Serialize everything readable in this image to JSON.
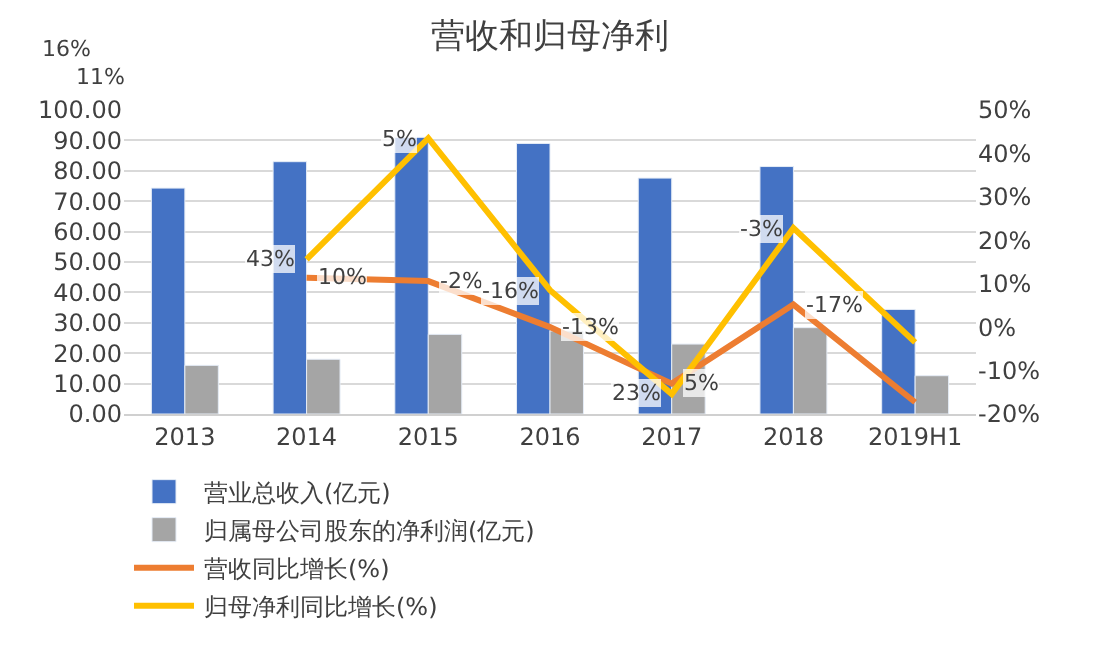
{
  "chart_data": {
    "type": "bar",
    "title": "营收和归母净利",
    "categories": [
      "2013",
      "2014",
      "2015",
      "2016",
      "2017",
      "2018",
      "2019H1"
    ],
    "series": [
      {
        "name": "营业总收入(亿元)",
        "color": "#4472c4",
        "values": [
          74.3,
          83.0,
          91.0,
          89.0,
          77.6,
          81.4,
          34.4
        ]
      },
      {
        "name": "归属母公司股东的净利润(亿元)",
        "color": "#a5a5a5",
        "values": [
          16.0,
          18.0,
          26.2,
          27.3,
          23.0,
          28.4,
          12.6
        ]
      },
      {
        "name": "营收同比增长(%)",
        "type": "line",
        "axis": "y2",
        "color": "#ed7d31",
        "values": [
          null,
          11.4,
          10.6,
          0.0,
          -13.0,
          5.2,
          -17.3
        ]
      },
      {
        "name": "归母净利同比增长(%)",
        "type": "line",
        "axis": "y2",
        "color": "#ffc000",
        "values": [
          null,
          15.6,
          43.5,
          8.5,
          -15.4,
          22.8,
          -3.5
        ]
      }
    ],
    "ylim": [
      0,
      100
    ],
    "yticks": [
      {
        "value": 0,
        "label": "0.00"
      },
      {
        "value": 10,
        "label": "10.00"
      },
      {
        "value": 20,
        "label": "20.00"
      },
      {
        "value": 30,
        "label": "30.00"
      },
      {
        "value": 40,
        "label": "40.00"
      },
      {
        "value": 50,
        "label": "50.00"
      },
      {
        "value": 60,
        "label": "60.00"
      },
      {
        "value": 70,
        "label": "70.00"
      },
      {
        "value": 80,
        "label": "80.00"
      },
      {
        "value": 90,
        "label": "90.00"
      },
      {
        "value": 100,
        "label": "100.00"
      }
    ],
    "y2lim": [
      -20,
      50
    ],
    "y2ticks": [
      {
        "value": -20,
        "label": "-20%"
      },
      {
        "value": -10,
        "label": "-10%"
      },
      {
        "value": 0,
        "label": "0%"
      },
      {
        "value": 10,
        "label": "10%"
      },
      {
        "value": 20,
        "label": "20%"
      },
      {
        "value": 30,
        "label": "30%"
      },
      {
        "value": 40,
        "label": "40%"
      },
      {
        "value": 50,
        "label": "50%"
      }
    ],
    "annotations": [
      "16%",
      "11%",
      {
        "text": "43%",
        "x": "2014",
        "y": 50.9
      },
      {
        "text": "10%",
        "x": "2014",
        "y": 44.9
      },
      {
        "text": "5%",
        "x": "2015",
        "y": 90.7
      },
      {
        "text": "-2%",
        "x": "2015",
        "y": 43.7
      },
      {
        "text": "-16%",
        "x": "2016",
        "y": 40.7
      },
      {
        "text": "-13%",
        "x": "2016",
        "y": 28.6
      },
      {
        "text": "23%",
        "x": "2017",
        "y": 6.6
      },
      {
        "text": "5%",
        "x": "2017",
        "y": 10.0
      },
      {
        "text": "-3%",
        "x": "2018",
        "y": 61.1
      },
      {
        "text": "-17%",
        "x": "2018",
        "y": 36.0
      }
    ],
    "grid": "y",
    "legend": "bottom",
    "marker": "none",
    "line_style": "solid"
  }
}
